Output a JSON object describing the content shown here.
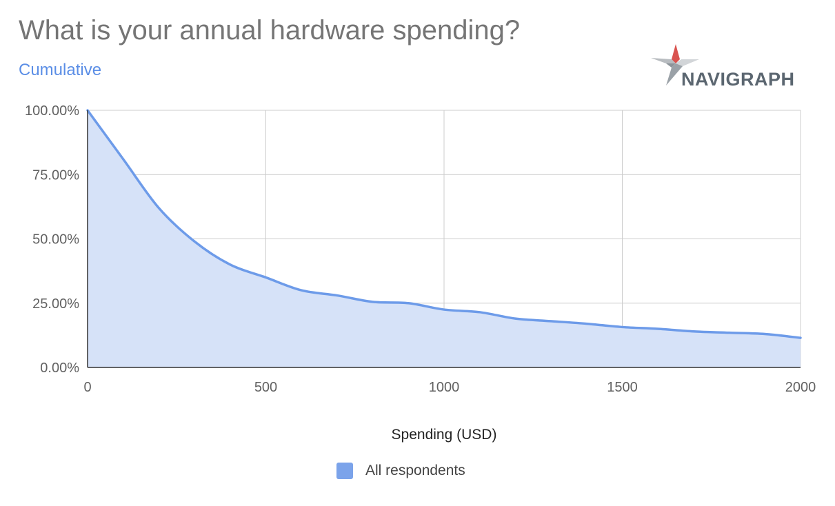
{
  "header": {
    "title": "What is your annual hardware spending?",
    "subtitle": "Cumulative"
  },
  "logo": {
    "text": "NAVIGRAPH",
    "icon": "navigraph-star-logo"
  },
  "colors": {
    "line": "#6d9be9",
    "fill": "#d6e2f8",
    "subtitle": "#5b8ee6",
    "grid": "#cccccc",
    "axis": "#333333"
  },
  "chart_data": {
    "type": "area",
    "title": "What is your annual hardware spending?",
    "subtitle": "Cumulative",
    "xlabel": "Spending (USD)",
    "ylabel": "",
    "xlim": [
      0,
      2000
    ],
    "ylim": [
      0,
      100
    ],
    "x_ticks": [
      0,
      500,
      1000,
      1500,
      2000
    ],
    "y_ticks": [
      0,
      25,
      50,
      75,
      100
    ],
    "x_tick_labels": [
      "0",
      "500",
      "1000",
      "1500",
      "2000"
    ],
    "y_tick_labels": [
      "0.00%",
      "25.00%",
      "50.00%",
      "75.00%",
      "100.00%"
    ],
    "grid": true,
    "legend_position": "bottom",
    "series": [
      {
        "name": "All respondents",
        "x": [
          0,
          100,
          200,
          300,
          400,
          500,
          600,
          700,
          800,
          900,
          1000,
          1100,
          1200,
          1300,
          1400,
          1500,
          1600,
          1700,
          1800,
          1900,
          2000
        ],
        "values": [
          100,
          81,
          62,
          49,
          40,
          35,
          30,
          28,
          25.5,
          25,
          22.5,
          21.5,
          19,
          18,
          17,
          15.7,
          15,
          14,
          13.5,
          13,
          11.5
        ]
      }
    ]
  },
  "legend": {
    "items": [
      {
        "label": "All respondents",
        "color": "#7ba3ea"
      }
    ]
  }
}
